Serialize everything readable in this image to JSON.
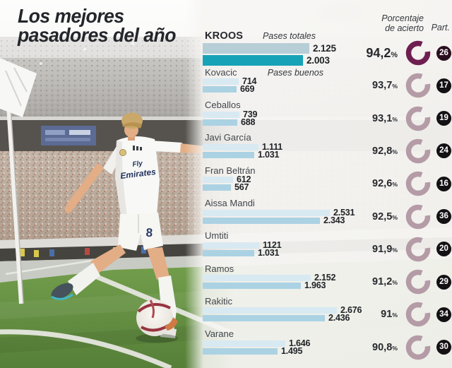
{
  "title": {
    "line1": "Los mejores",
    "line2": "pasadores del año"
  },
  "legend": {
    "pases_totales": "Pases totales",
    "pases_buenos": "Pases buenos"
  },
  "headers": {
    "porcentaje_line1": "Porcentaje",
    "porcentaje_line2": "de acierto",
    "part": "Part."
  },
  "photo": {
    "jersey_line1": "Fly",
    "jersey_line2": "Emirates",
    "shorts_number": "8"
  },
  "colors": {
    "bar_totales": "#d8e9f2",
    "bar_buenos": "#abd2e3",
    "bar_totales_hl": "#b7ced6",
    "bar_buenos_hl": "#18a2b7",
    "ring": "#b49ba6",
    "ring_hl": "#6e1f50",
    "badge_bg": "#141014",
    "badge_bg_hl": "#2a0e1f"
  },
  "chart_data": {
    "type": "bar",
    "orientation": "horizontal",
    "title": "Los mejores pasadores del año",
    "series_labels": [
      "Pases totales",
      "Pases buenos"
    ],
    "max_value": 2676,
    "players": [
      {
        "name": "KROOS",
        "pases_totales": 2125,
        "pases_totales_label": "2.125",
        "pases_buenos": 2003,
        "pases_buenos_label": "2.003",
        "porcentaje": "94,2%",
        "partidos": "26",
        "highlight": true
      },
      {
        "name": "Kovacic",
        "pases_totales": 714,
        "pases_totales_label": "714",
        "pases_buenos": 669,
        "pases_buenos_label": "669",
        "porcentaje": "93,7%",
        "partidos": "17"
      },
      {
        "name": "Ceballos",
        "pases_totales": 739,
        "pases_totales_label": "739",
        "pases_buenos": 688,
        "pases_buenos_label": "688",
        "porcentaje": "93,1%",
        "partidos": "19"
      },
      {
        "name": "Javi García",
        "pases_totales": 1111,
        "pases_totales_label": "1.111",
        "pases_buenos": 1031,
        "pases_buenos_label": "1.031",
        "porcentaje": "92,8%",
        "partidos": "24"
      },
      {
        "name": "Fran Beltrán",
        "pases_totales": 612,
        "pases_totales_label": "612",
        "pases_buenos": 567,
        "pases_buenos_label": "567",
        "porcentaje": "92,6%",
        "partidos": "16"
      },
      {
        "name": "Aissa Mandi",
        "pases_totales": 2531,
        "pases_totales_label": "2.531",
        "pases_buenos": 2343,
        "pases_buenos_label": "2.343",
        "porcentaje": "92,5%",
        "partidos": "36"
      },
      {
        "name": "Umtiti",
        "pases_totales": 1121,
        "pases_totales_label": "1121",
        "pases_buenos": 1031,
        "pases_buenos_label": "1.031",
        "porcentaje": "91,9%",
        "partidos": "20"
      },
      {
        "name": "Ramos",
        "pases_totales": 2152,
        "pases_totales_label": "2.152",
        "pases_buenos": 1963,
        "pases_buenos_label": "1.963",
        "porcentaje": "91,2%",
        "partidos": "29"
      },
      {
        "name": "Rakitic",
        "pases_totales": 2676,
        "pases_totales_label": "2.676",
        "pases_buenos": 2436,
        "pases_buenos_label": "2.436",
        "porcentaje": "91%",
        "partidos": "34"
      },
      {
        "name": "Varane",
        "pases_totales": 1646,
        "pases_totales_label": "1.646",
        "pases_buenos": 1495,
        "pases_buenos_label": "1.495",
        "porcentaje": "90,8%",
        "partidos": "30"
      }
    ]
  }
}
